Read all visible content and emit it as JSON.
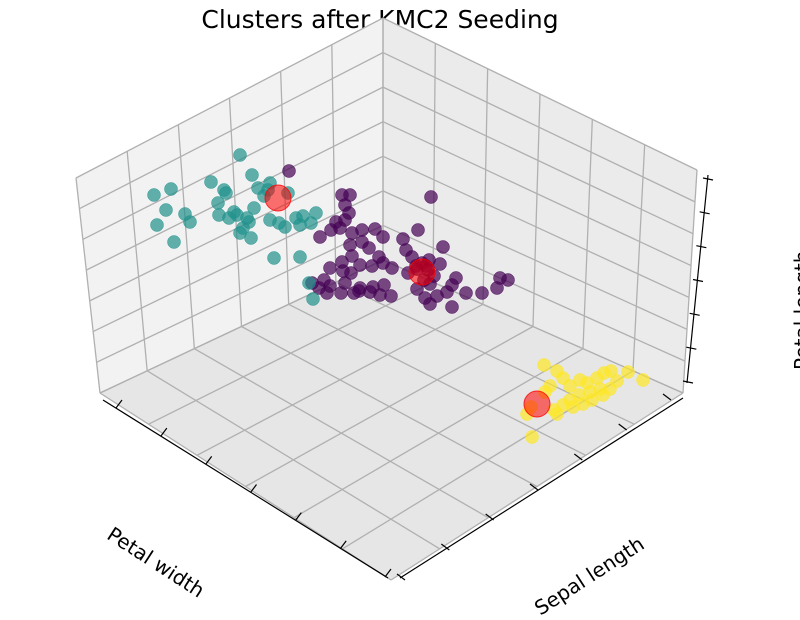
{
  "chart_data": {
    "type": "scatter",
    "title": "Clusters after KMC2 Seeding",
    "xlabel": "Petal width",
    "ylabel": "Sepal length",
    "zlabel": "Petal length",
    "grid": true,
    "colors": {
      "cluster_0": "#440154",
      "cluster_1": "#21918c",
      "cluster_2": "#fde725",
      "centers": "#ff0000",
      "pane": "#f2f2f2",
      "grid": "#b0b0b0"
    },
    "clusters": [
      {
        "color": "#440154",
        "points": [
          [
            289,
            171
          ],
          [
            342,
            195
          ],
          [
            350,
            195
          ],
          [
            345,
            205
          ],
          [
            349,
            213
          ],
          [
            336,
            222
          ],
          [
            345,
            220
          ],
          [
            331,
            230
          ],
          [
            320,
            237
          ],
          [
            340,
            228
          ],
          [
            352,
            233
          ],
          [
            362,
            230
          ],
          [
            375,
            229
          ],
          [
            383,
            237
          ],
          [
            362,
            242
          ],
          [
            350,
            245
          ],
          [
            352,
            256
          ],
          [
            342,
            262
          ],
          [
            360,
            265
          ],
          [
            369,
            248
          ],
          [
            379,
            257
          ],
          [
            372,
            266
          ],
          [
            383,
            263
          ],
          [
            392,
            268
          ],
          [
            330,
            268
          ],
          [
            343,
            271
          ],
          [
            351,
            273
          ],
          [
            324,
            280
          ],
          [
            312,
            283
          ],
          [
            330,
            286
          ],
          [
            345,
            283
          ],
          [
            360,
            288
          ],
          [
            373,
            287
          ],
          [
            384,
            285
          ],
          [
            380,
            295
          ],
          [
            391,
            296
          ],
          [
            370,
            292
          ],
          [
            359,
            291
          ],
          [
            354,
            293
          ],
          [
            341,
            293
          ],
          [
            327,
            293
          ],
          [
            319,
            288
          ],
          [
            403,
            239
          ],
          [
            418,
            230
          ],
          [
            431,
            197
          ],
          [
            406,
            250
          ],
          [
            412,
            257
          ],
          [
            416,
            266
          ],
          [
            422,
            263
          ],
          [
            426,
            266
          ],
          [
            429,
            260
          ],
          [
            424,
            280
          ],
          [
            417,
            289
          ],
          [
            430,
            284
          ],
          [
            434,
            276
          ],
          [
            443,
            247
          ],
          [
            440,
            264
          ],
          [
            456,
            278
          ],
          [
            447,
            292
          ],
          [
            452,
            285
          ],
          [
            437,
            296
          ],
          [
            425,
            298
          ],
          [
            430,
            304
          ],
          [
            452,
            307
          ],
          [
            466,
            293
          ],
          [
            482,
            293
          ],
          [
            500,
            278
          ],
          [
            508,
            280
          ],
          [
            497,
            288
          ],
          [
            417,
            269
          ],
          [
            408,
            273
          ],
          [
            428,
            270
          ]
        ]
      },
      {
        "color": "#21918c",
        "points": [
          [
            240,
            155
          ],
          [
            252,
            175
          ],
          [
            270,
            183
          ],
          [
            258,
            188
          ],
          [
            268,
            190
          ],
          [
            288,
            193
          ],
          [
            211,
            182
          ],
          [
            224,
            190
          ],
          [
            226,
            193
          ],
          [
            218,
            203
          ],
          [
            219,
            215
          ],
          [
            237,
            215
          ],
          [
            234,
            212
          ],
          [
            229,
            218
          ],
          [
            247,
            218
          ],
          [
            249,
            222
          ],
          [
            243,
            228
          ],
          [
            240,
            233
          ],
          [
            251,
            238
          ],
          [
            270,
            220
          ],
          [
            279,
            223
          ],
          [
            285,
            227
          ],
          [
            296,
            218
          ],
          [
            303,
            216
          ],
          [
            311,
            223
          ],
          [
            316,
            213
          ],
          [
            300,
            225
          ],
          [
            264,
            196
          ],
          [
            254,
            208
          ],
          [
            154,
            195
          ],
          [
            171,
            189
          ],
          [
            166,
            210
          ],
          [
            185,
            214
          ],
          [
            190,
            222
          ],
          [
            157,
            225
          ],
          [
            174,
            242
          ],
          [
            274,
            258
          ],
          [
            300,
            257
          ],
          [
            309,
            283
          ],
          [
            313,
            299
          ]
        ]
      },
      {
        "color": "#fde725",
        "points": [
          [
            544,
            365
          ],
          [
            557,
            371
          ],
          [
            563,
            378
          ],
          [
            570,
            386
          ],
          [
            580,
            380
          ],
          [
            587,
            383
          ],
          [
            597,
            378
          ],
          [
            604,
            373
          ],
          [
            611,
            371
          ],
          [
            617,
            381
          ],
          [
            628,
            372
          ],
          [
            643,
            380
          ],
          [
            600,
            389
          ],
          [
            590,
            392
          ],
          [
            579,
            395
          ],
          [
            570,
            400
          ],
          [
            563,
            405
          ],
          [
            573,
            407
          ],
          [
            583,
            404
          ],
          [
            592,
            400
          ],
          [
            603,
            395
          ],
          [
            610,
            389
          ],
          [
            550,
            386
          ],
          [
            545,
            392
          ],
          [
            531,
            407
          ],
          [
            527,
            414
          ],
          [
            532,
            437
          ],
          [
            554,
            410
          ],
          [
            557,
            414
          ]
        ]
      }
    ],
    "centers": [
      [
        278,
        198
      ],
      [
        422,
        272
      ],
      [
        537,
        404
      ]
    ],
    "tick_counts": {
      "x": 6,
      "y": 6,
      "z": 7
    }
  }
}
